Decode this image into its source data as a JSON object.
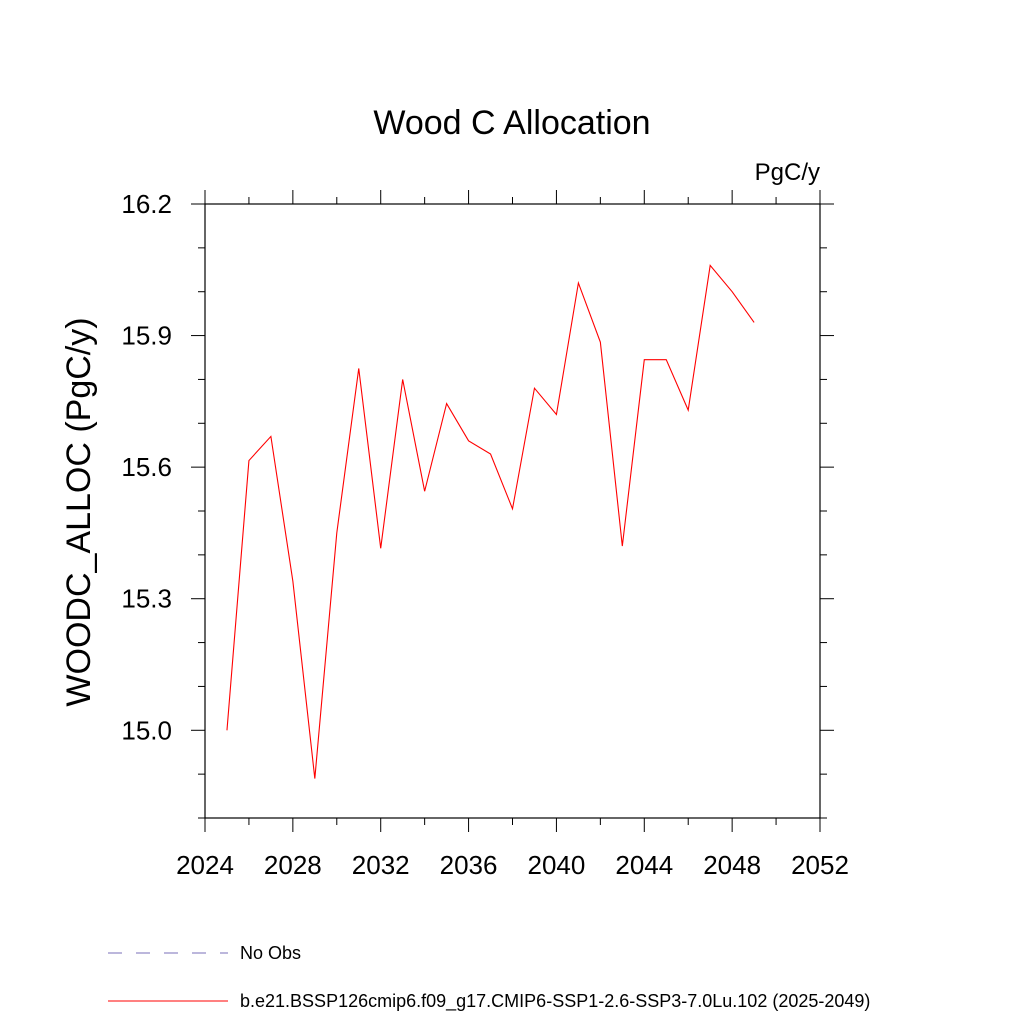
{
  "chart_data": {
    "type": "line",
    "title": "Wood C Allocation",
    "units": "PgC/y",
    "ylabel": "WOODC_ALLOC  (PgC/y)",
    "xlabel": "",
    "xlim": [
      2024,
      2052
    ],
    "ylim": [
      14.8,
      16.2
    ],
    "xticks": [
      2024,
      2028,
      2032,
      2036,
      2040,
      2044,
      2048,
      2052
    ],
    "yticks": [
      15.0,
      15.3,
      15.6,
      15.9,
      16.2
    ],
    "ytick_labels": [
      "15.0",
      "15.3",
      "15.6",
      "15.9",
      "16.2"
    ],
    "grid": false,
    "series": [
      {
        "name": "b.e21.BSSP126cmip6.f09_g17.CMIP6-SSP1-2.6-SSP3-7.0Lu.102 (2025-2049)",
        "color": "#ff0000",
        "x": [
          2025,
          2026,
          2027,
          2028,
          2029,
          2030,
          2031,
          2032,
          2033,
          2034,
          2035,
          2036,
          2037,
          2038,
          2039,
          2040,
          2041,
          2042,
          2043,
          2044,
          2045,
          2046,
          2047,
          2048,
          2049
        ],
        "values": [
          15.0,
          15.615,
          15.67,
          15.34,
          14.89,
          15.45,
          15.825,
          15.415,
          15.8,
          15.545,
          15.745,
          15.66,
          15.63,
          15.505,
          15.78,
          15.72,
          16.02,
          15.885,
          15.42,
          15.845,
          15.845,
          15.73,
          16.06,
          16.0,
          15.93
        ]
      }
    ],
    "legend": {
      "placement": "bottom",
      "entries": [
        {
          "label": "No Obs",
          "color": "#7a6fb8",
          "style": "dashed"
        },
        {
          "label": "b.e21.BSSP126cmip6.f09_g17.CMIP6-SSP1-2.6-SSP3-7.0Lu.102 (2025-2049)",
          "color": "#ff0000",
          "style": "solid"
        }
      ]
    }
  }
}
